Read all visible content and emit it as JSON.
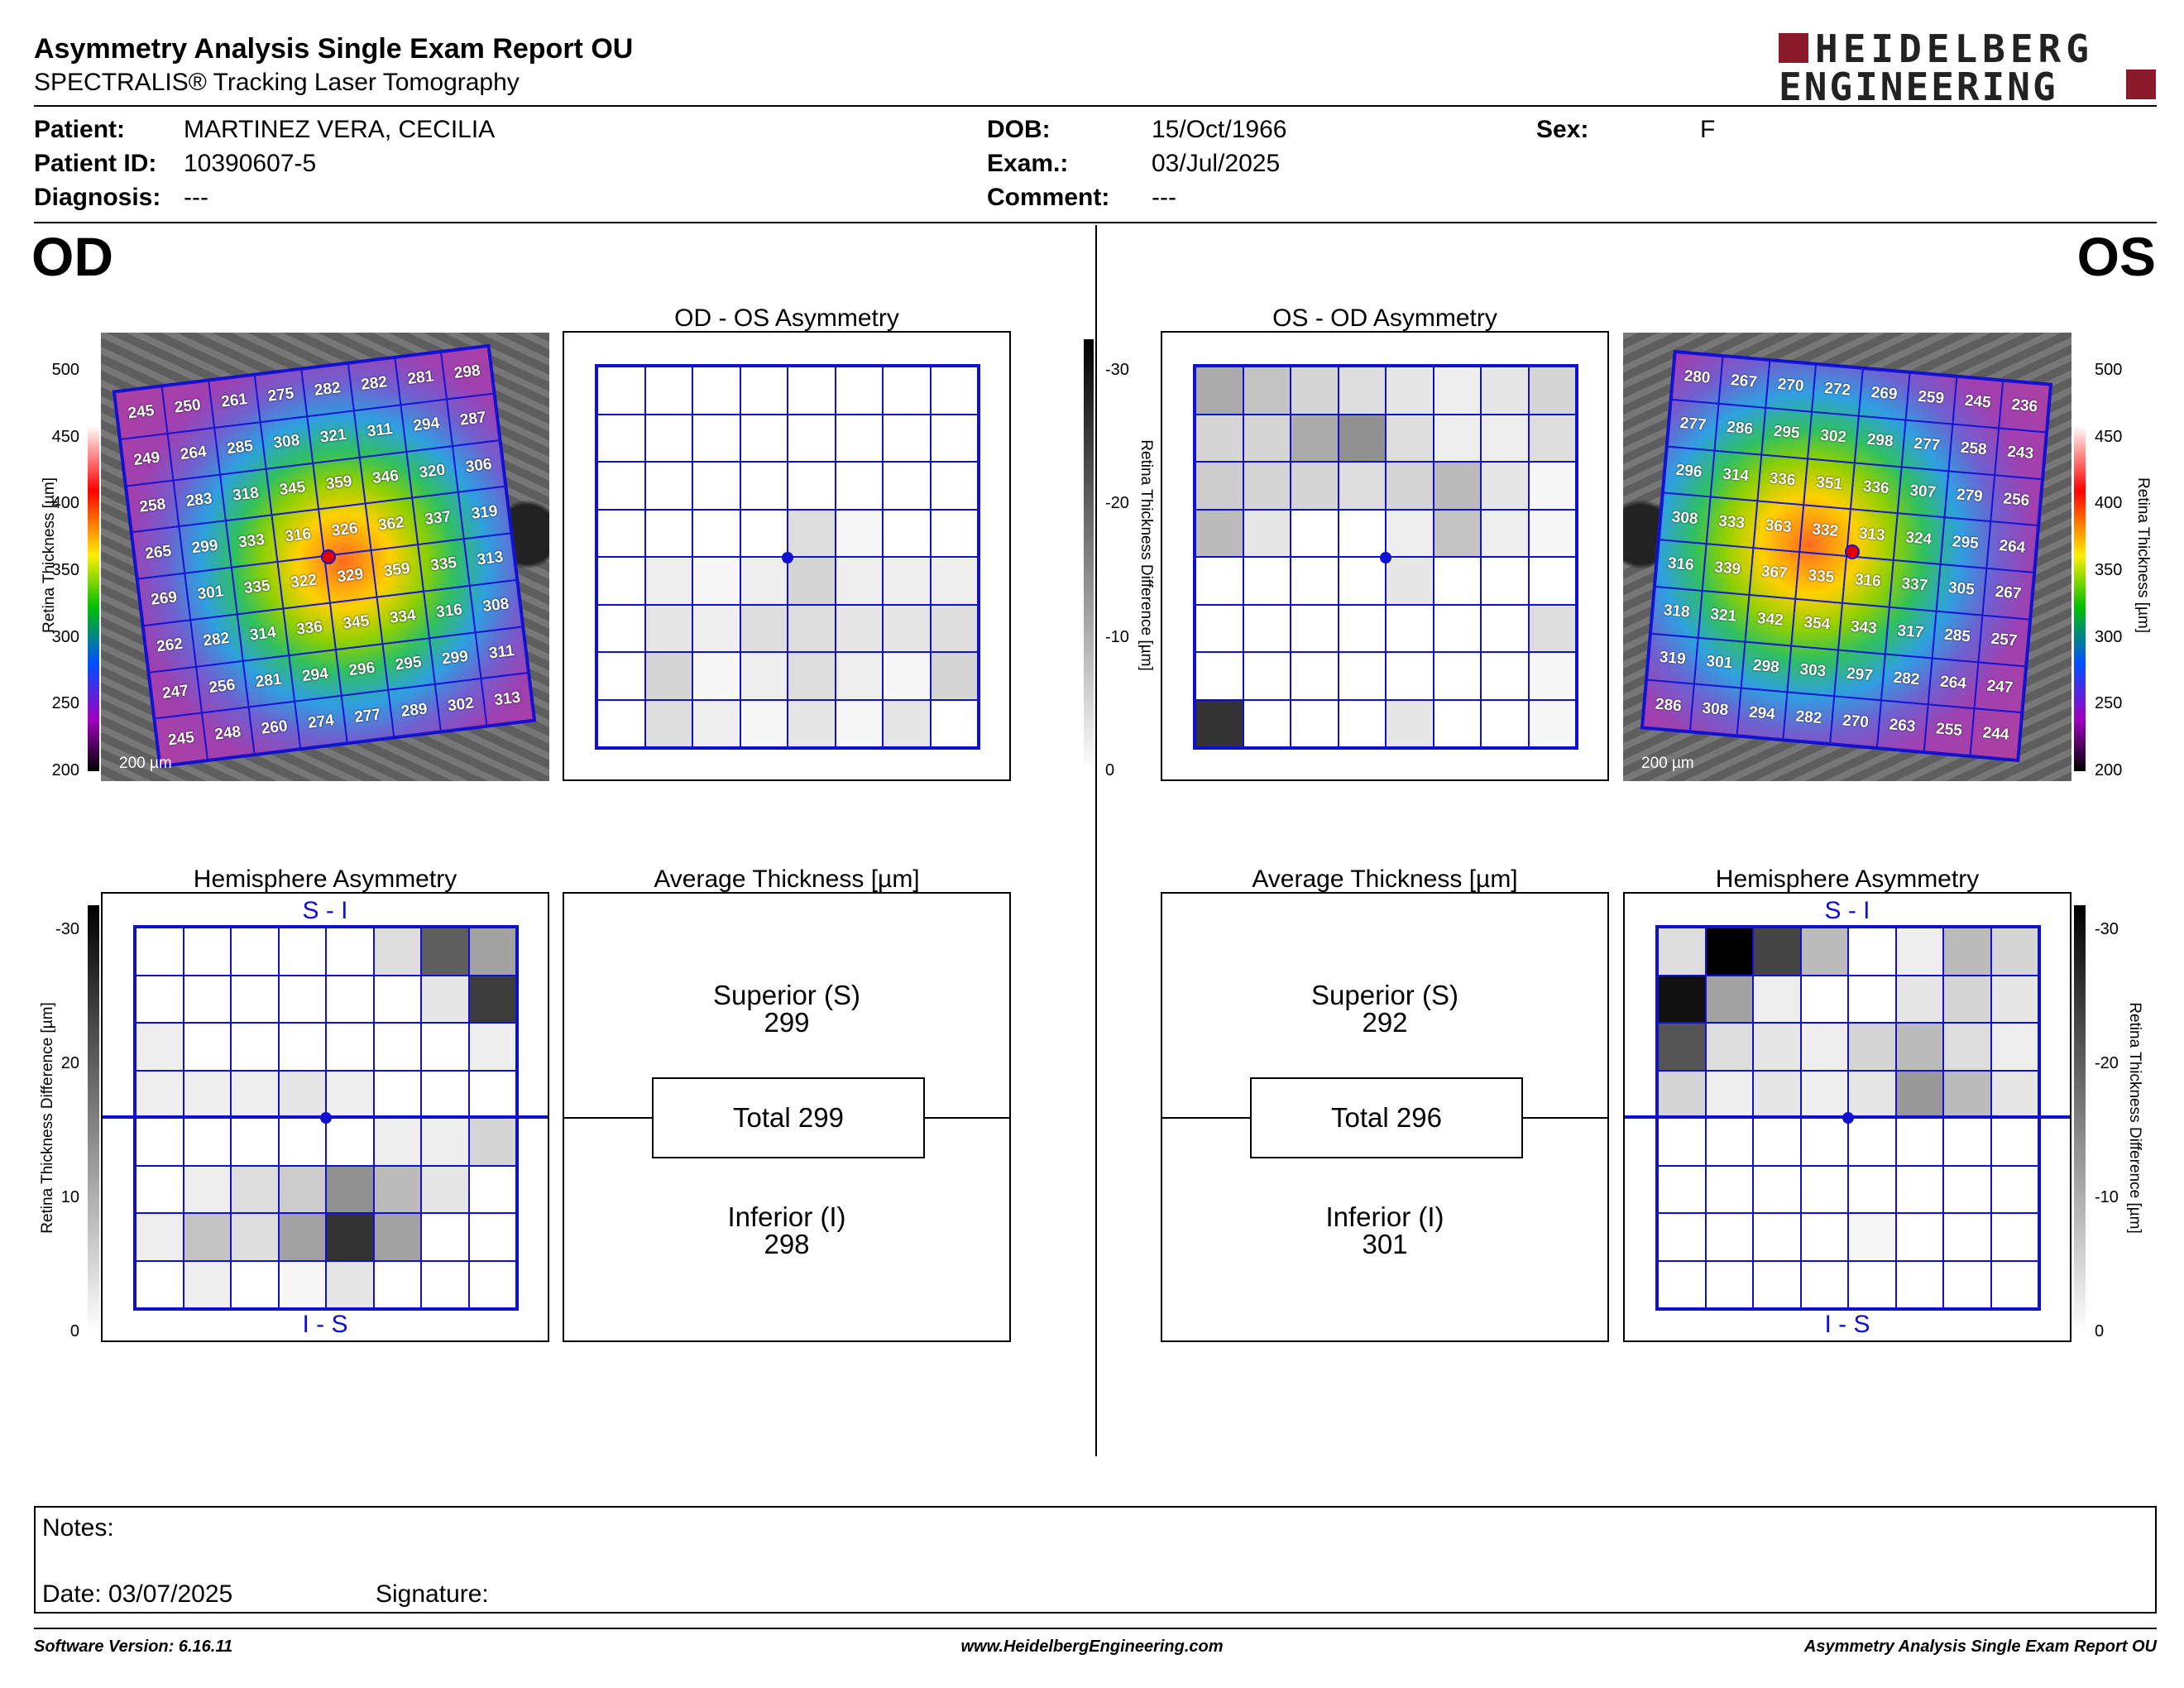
{
  "header": {
    "title": "Asymmetry Analysis Single Exam Report OU",
    "subtitle": "SPECTRALIS® Tracking Laser Tomography",
    "logo_line1": "HEIDELBERG",
    "logo_line2": "ENGINEERING",
    "logo_color": "#8a1a2a"
  },
  "patient": {
    "patient_label": "Patient:",
    "patient": "MARTINEZ VERA, CECILIA",
    "id_label": "Patient ID:",
    "id": "10390607-5",
    "diagnosis_label": "Diagnosis:",
    "diagnosis": "---",
    "dob_label": "DOB:",
    "dob": "15/Oct/1966",
    "exam_label": "Exam.:",
    "exam": "03/Jul/2025",
    "comment_label": "Comment:",
    "comment": "---",
    "sex_label": "Sex:",
    "sex": "F"
  },
  "od": {
    "eye": "OD",
    "asym_title": "OD - OS Asymmetry",
    "hemi_title": "Hemisphere Asymmetry",
    "avg_title": "Average Thickness [µm]",
    "superior": "Superior (S)\n299",
    "total": "Total 299",
    "inferior": "Inferior (I)\n298",
    "scale_bar": "200 µm",
    "thickness_grid": [
      [
        245,
        250,
        261,
        275,
        282,
        282,
        281,
        298
      ],
      [
        249,
        264,
        285,
        308,
        321,
        311,
        294,
        287
      ],
      [
        258,
        283,
        318,
        345,
        359,
        346,
        320,
        306
      ],
      [
        265,
        299,
        333,
        316,
        326,
        362,
        337,
        319
      ],
      [
        269,
        301,
        335,
        322,
        329,
        359,
        335,
        313
      ],
      [
        262,
        282,
        314,
        336,
        345,
        334,
        316,
        308
      ],
      [
        247,
        256,
        281,
        294,
        296,
        295,
        299,
        311
      ],
      [
        245,
        248,
        260,
        274,
        277,
        289,
        302,
        313
      ]
    ],
    "asym_grid": [
      [
        0,
        0,
        0,
        0,
        0,
        0,
        0,
        0
      ],
      [
        0,
        0,
        0,
        0,
        0,
        0,
        0,
        0
      ],
      [
        0,
        0,
        0,
        0,
        0,
        0,
        0,
        0
      ],
      [
        0,
        0,
        0,
        0,
        4,
        1,
        0,
        0
      ],
      [
        0,
        2,
        1,
        2,
        5,
        2,
        2,
        2
      ],
      [
        0,
        3,
        2,
        4,
        4,
        3,
        3,
        4
      ],
      [
        0,
        5,
        1,
        2,
        4,
        2,
        1,
        5
      ],
      [
        0,
        4,
        2,
        1,
        3,
        1,
        3,
        0
      ]
    ],
    "hemi_grid": [
      [
        0,
        0,
        0,
        0,
        0,
        4,
        19,
        11
      ],
      [
        0,
        0,
        0,
        0,
        0,
        0,
        3,
        23
      ],
      [
        2,
        0,
        0,
        0,
        0,
        0,
        0,
        2
      ],
      [
        2,
        2,
        2,
        3,
        2,
        0,
        0,
        0
      ],
      [
        0,
        0,
        0,
        0,
        0,
        2,
        2,
        5
      ],
      [
        0,
        2,
        4,
        6,
        13,
        8,
        3,
        0
      ],
      [
        2,
        7,
        4,
        11,
        24,
        11,
        0,
        0
      ],
      [
        0,
        2,
        0,
        1,
        3,
        0,
        0,
        0
      ]
    ],
    "hemi_top": "S - I",
    "hemi_bottom": "I - S"
  },
  "os": {
    "eye": "OS",
    "asym_title": "OS - OD Asymmetry",
    "hemi_title": "Hemisphere Asymmetry",
    "avg_title": "Average Thickness [µm]",
    "superior": "Superior (S)\n292",
    "total": "Total 296",
    "inferior": "Inferior (I)\n301",
    "scale_bar": "200 µm",
    "thickness_grid": [
      [
        280,
        267,
        270,
        272,
        269,
        259,
        245,
        236
      ],
      [
        277,
        286,
        295,
        302,
        298,
        277,
        258,
        243
      ],
      [
        296,
        314,
        336,
        351,
        336,
        307,
        279,
        256
      ],
      [
        308,
        333,
        363,
        332,
        313,
        324,
        295,
        264
      ],
      [
        316,
        339,
        367,
        335,
        316,
        337,
        305,
        267
      ],
      [
        318,
        321,
        342,
        354,
        343,
        317,
        285,
        257
      ],
      [
        319,
        301,
        298,
        303,
        297,
        282,
        264,
        247
      ],
      [
        286,
        308,
        294,
        282,
        270,
        263,
        255,
        244
      ]
    ],
    "asym_grid": [
      [
        10,
        7,
        5,
        4,
        3,
        2,
        3,
        5
      ],
      [
        5,
        5,
        10,
        13,
        4,
        2,
        2,
        4
      ],
      [
        6,
        5,
        5,
        4,
        5,
        8,
        3,
        1
      ],
      [
        8,
        3,
        0,
        0,
        2,
        7,
        2,
        1
      ],
      [
        0,
        0,
        0,
        0,
        3,
        0,
        0,
        0
      ],
      [
        0,
        0,
        0,
        0,
        0,
        0,
        0,
        4
      ],
      [
        0,
        0,
        0,
        0,
        0,
        0,
        0,
        1
      ],
      [
        24,
        0,
        0,
        0,
        3,
        0,
        0,
        1
      ]
    ],
    "hemi_grid": [
      [
        4,
        30,
        22,
        8,
        0,
        2,
        8,
        5
      ],
      [
        28,
        11,
        2,
        0,
        0,
        3,
        5,
        3
      ],
      [
        20,
        4,
        3,
        2,
        5,
        8,
        4,
        2
      ],
      [
        5,
        2,
        3,
        2,
        3,
        12,
        8,
        3
      ],
      [
        0,
        0,
        0,
        0,
        0,
        0,
        0,
        0
      ],
      [
        0,
        0,
        0,
        0,
        0,
        0,
        0,
        0
      ],
      [
        0,
        0,
        0,
        0,
        1,
        0,
        0,
        0
      ],
      [
        0,
        0,
        0,
        0,
        0,
        0,
        0,
        0
      ]
    ],
    "hemi_top": "S - I",
    "hemi_bottom": "I - S"
  },
  "scales": {
    "thickness_ticks": [
      "500",
      "450",
      "400",
      "350",
      "300",
      "250",
      "200"
    ],
    "thickness_label": "Retina  Thickness [µm]",
    "diff_ticks_asym": [
      "-30",
      "-20",
      "-10",
      "0"
    ],
    "diff_ticks_hemi": [
      "-30",
      "-20",
      "-10",
      "0"
    ],
    "diff_ticks_hemi_left": [
      "-30",
      "20",
      "10",
      "0"
    ],
    "diff_label": "Retina Thickness Difference [µm]"
  },
  "notes": {
    "notes_label": "Notes:",
    "date_label": "Date: 03/07/2025",
    "signature_label": "Signature:"
  },
  "footer": {
    "left": "Software Version: 6.16.11",
    "center": "www.HeidelbergEngineering.com",
    "right": "Asymmetry Analysis Single Exam Report OU"
  }
}
